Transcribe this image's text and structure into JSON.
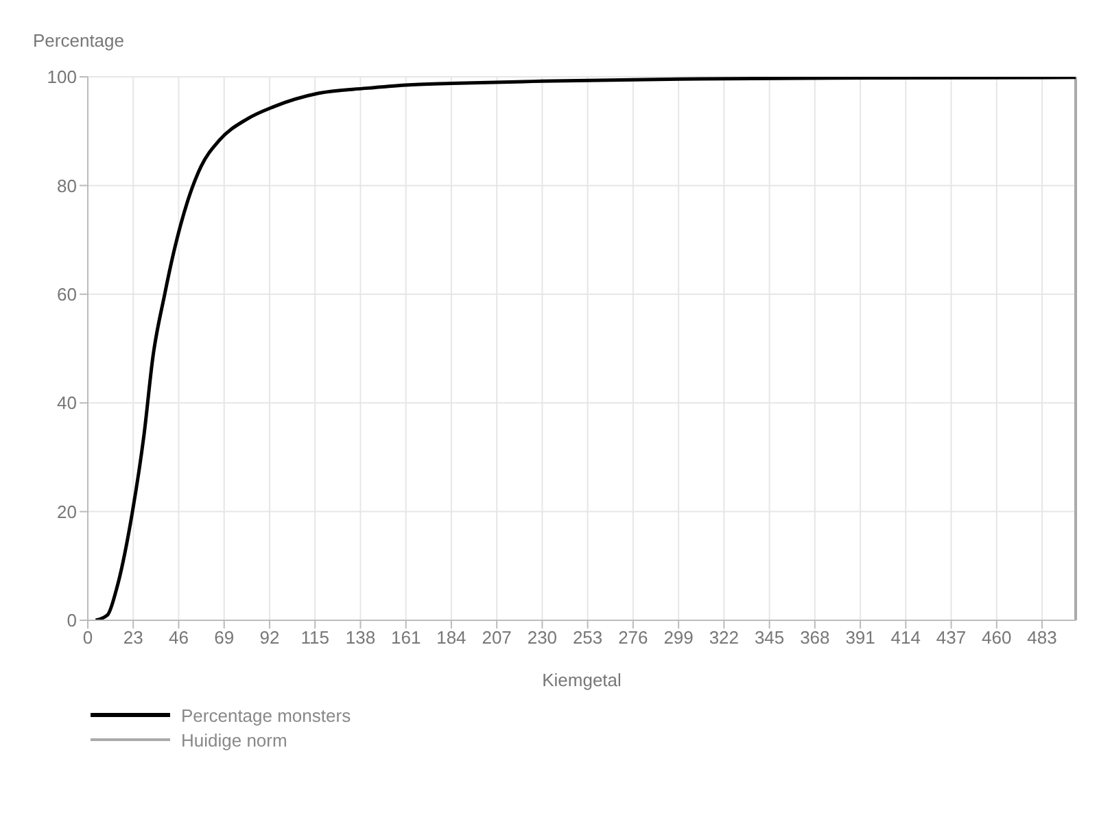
{
  "chart_data": {
    "type": "line",
    "ylabel": "Percentage",
    "xlabel": "Kiemgetal",
    "x": [
      4,
      10,
      14.5,
      22.6,
      28.4,
      33,
      38.8,
      43.4,
      50.4,
      57.3,
      66.5,
      80.4,
      94,
      117,
      140.7,
      161,
      184,
      230,
      300,
      400,
      500
    ],
    "series": [
      {
        "name": "Percentage monsters",
        "color": "#000000",
        "values": [
          0,
          1,
          5.7,
          20,
          34,
          48.6,
          59.8,
          67.6,
          77,
          83.5,
          88.3,
          92.2,
          94.5,
          97,
          97.9,
          98.5,
          98.8,
          99.2,
          99.6,
          99.8,
          99.9
        ]
      }
    ],
    "xlim": [
      0,
      500
    ],
    "xticks": [
      0,
      23,
      46,
      69,
      92,
      115,
      138,
      161,
      184,
      207,
      230,
      253,
      276,
      299,
      322,
      345,
      368,
      391,
      414,
      437,
      460,
      483
    ],
    "ylim": [
      0,
      100
    ],
    "yticks": [
      0,
      20,
      40,
      60,
      80,
      100
    ],
    "ref_lines": [
      {
        "axis": "x",
        "value": 500,
        "label": "Huidige norm",
        "color": "#aaaaaa"
      }
    ],
    "grid": true,
    "legend": "bottom left",
    "marker": "none",
    "line_style": "solid"
  }
}
